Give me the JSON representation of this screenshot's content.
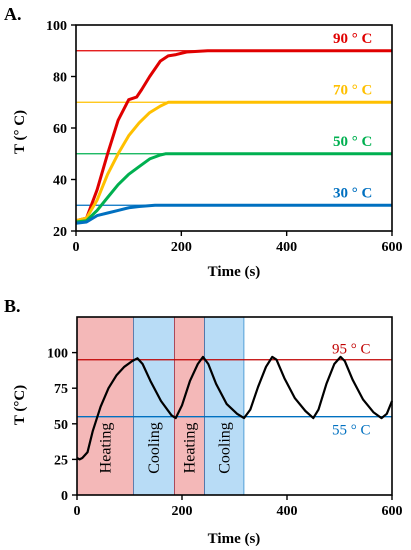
{
  "chart_data": [
    {
      "panel_label": "A.",
      "type": "line",
      "xlabel": "Time (s)",
      "ylabel": "T (° C)",
      "xlim": [
        0,
        600
      ],
      "ylim": [
        20,
        100
      ],
      "xticks": [
        "0",
        "200",
        "400",
        "600"
      ],
      "yticks": [
        "20",
        "40",
        "60",
        "80",
        "100"
      ],
      "reference_lines": [
        {
          "y": 90,
          "color": "#e00000"
        },
        {
          "y": 70,
          "color": "#ffc000"
        },
        {
          "y": 50,
          "color": "#00b050"
        },
        {
          "y": 30,
          "color": "#0070c0"
        }
      ],
      "series": [
        {
          "name": "90 ° C",
          "color": "#e00000",
          "x": [
            0,
            20,
            40,
            60,
            80,
            100,
            115,
            125,
            140,
            160,
            175,
            190,
            210,
            250,
            300,
            400,
            500,
            600
          ],
          "y": [
            24,
            25,
            36,
            50,
            63,
            71,
            72,
            75,
            80,
            86,
            88,
            88.5,
            89.5,
            90,
            90,
            90,
            90,
            90
          ]
        },
        {
          "name": "70 ° C",
          "color": "#ffc000",
          "x": [
            0,
            20,
            40,
            60,
            80,
            100,
            120,
            140,
            160,
            175,
            185,
            200,
            250,
            300,
            400,
            500,
            600
          ],
          "y": [
            24,
            25,
            32,
            42,
            50,
            57,
            62,
            66,
            68.5,
            70,
            70,
            70,
            70,
            70,
            70,
            70,
            70
          ]
        },
        {
          "name": "50 ° C",
          "color": "#00b050",
          "x": [
            0,
            20,
            40,
            60,
            80,
            100,
            120,
            140,
            160,
            170,
            180,
            200,
            250,
            300,
            400,
            500,
            600
          ],
          "y": [
            23.5,
            24,
            28,
            33,
            38,
            42,
            45,
            48,
            49.5,
            50,
            50,
            50,
            50,
            50,
            50,
            50,
            50
          ]
        },
        {
          "name": "30 ° C",
          "color": "#0070c0",
          "x": [
            0,
            20,
            40,
            60,
            80,
            100,
            120,
            150,
            200,
            300,
            400,
            500,
            600
          ],
          "y": [
            23,
            23.5,
            26,
            27,
            28,
            29,
            29.5,
            30,
            30,
            30,
            30,
            30,
            30
          ]
        }
      ]
    },
    {
      "panel_label": "B.",
      "type": "line",
      "xlabel": "Time (s)",
      "ylabel": "T (°C)",
      "xlim": [
        0,
        600
      ],
      "ylim": [
        0,
        125
      ],
      "xticks": [
        "0",
        "200",
        "400",
        "600"
      ],
      "yticks": [
        "0",
        "25",
        "50",
        "75",
        "100"
      ],
      "reference_lines": [
        {
          "y": 95,
          "color": "#c00000",
          "label": "95 ° C"
        },
        {
          "y": 55,
          "color": "#0070c0",
          "label": "55 ° C"
        }
      ],
      "phases": [
        {
          "label": "Heating",
          "start": 0,
          "end": 108,
          "color": "#f4b8b8"
        },
        {
          "label": "Cooling",
          "start": 108,
          "end": 186,
          "color": "#b8dcf6"
        },
        {
          "label": "Heating",
          "start": 186,
          "end": 243,
          "color": "#f4b8b8"
        },
        {
          "label": "Cooling",
          "start": 243,
          "end": 318,
          "color": "#b8dcf6"
        }
      ],
      "series": [
        {
          "name": "",
          "color": "#000000",
          "x": [
            0,
            5,
            10,
            20,
            30,
            45,
            60,
            75,
            90,
            105,
            115,
            125,
            140,
            160,
            180,
            188,
            200,
            215,
            230,
            240,
            250,
            265,
            285,
            305,
            318,
            330,
            345,
            360,
            372,
            380,
            395,
            415,
            435,
            450,
            460,
            475,
            490,
            502,
            510,
            525,
            545,
            565,
            580,
            590,
            600
          ],
          "y": [
            26,
            25,
            26,
            30,
            45,
            62,
            75,
            84,
            90,
            94,
            96,
            92,
            80,
            66,
            56,
            54,
            63,
            80,
            92,
            97,
            92,
            78,
            64,
            57,
            54,
            60,
            76,
            90,
            97,
            95,
            82,
            68,
            59,
            54,
            60,
            78,
            92,
            97,
            94,
            81,
            67,
            58,
            54,
            57,
            66
          ]
        }
      ]
    }
  ]
}
